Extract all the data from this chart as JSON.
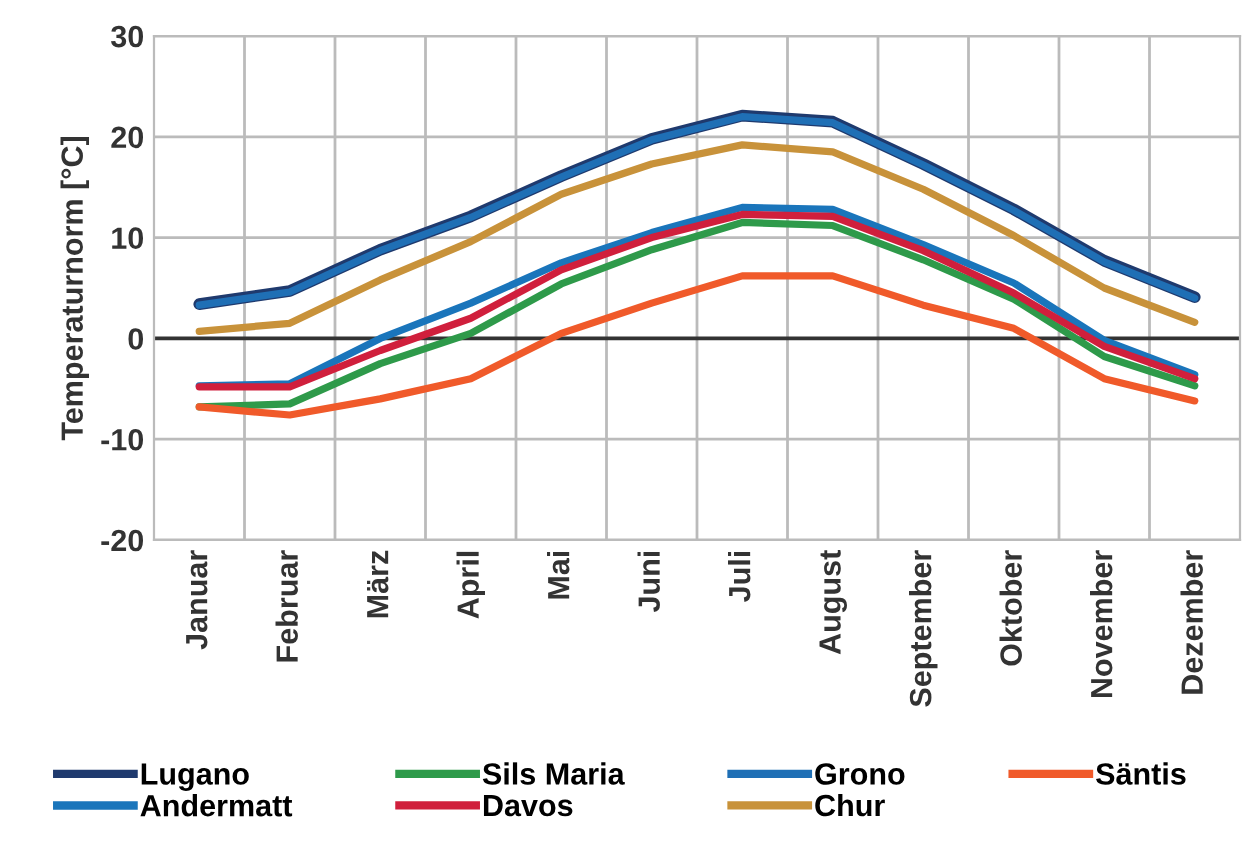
{
  "chart_data": {
    "type": "line",
    "ylabel": "Temperaturnorm [°C]",
    "categories": [
      "Januar",
      "Februar",
      "März",
      "April",
      "Mai",
      "Juni",
      "Juli",
      "August",
      "September",
      "Oktober",
      "November",
      "Dezember"
    ],
    "series": [
      {
        "name": "Lugano",
        "color": "#1f3a6e",
        "values": [
          3.4,
          4.7,
          8.8,
          12.1,
          16.1,
          19.8,
          22.1,
          21.5,
          17.3,
          12.8,
          7.7,
          4.1
        ]
      },
      {
        "name": "Andermatt",
        "color": "#1a75bb",
        "values": [
          -4.7,
          -4.5,
          0,
          3.5,
          7.5,
          10.5,
          13,
          12.8,
          9.3,
          5.5,
          -0.2,
          -3.6
        ]
      },
      {
        "name": "Sils Maria",
        "color": "#2e9a4a",
        "values": [
          -6.8,
          -6.5,
          -2.5,
          0.5,
          5.4,
          8.8,
          11.5,
          11.2,
          7.8,
          3.9,
          -1.8,
          -4.7
        ]
      },
      {
        "name": "Davos",
        "color": "#d01f3c",
        "values": [
          -4.8,
          -4.8,
          -1.2,
          2,
          6.8,
          10,
          12.3,
          12.1,
          8.7,
          4.5,
          -0.8,
          -4
        ]
      },
      {
        "name": "Grono",
        "color": "#1f6fb5",
        "values": [
          3.3,
          4.6,
          8.7,
          12,
          16,
          19.7,
          22,
          21.4,
          17.2,
          12.7,
          7.6,
          4
        ]
      },
      {
        "name": "Chur",
        "color": "#c8923a",
        "values": [
          0.7,
          1.5,
          5.8,
          9.6,
          14.3,
          17.3,
          19.2,
          18.5,
          14.8,
          10.2,
          5,
          1.6
        ]
      },
      {
        "name": "Säntis",
        "color": "#f05a2a",
        "values": [
          -6.8,
          -7.6,
          -6,
          -4,
          0.5,
          3.5,
          6.2,
          6.2,
          3.3,
          1,
          -4,
          -6.2
        ]
      }
    ],
    "ylim": [
      -20,
      30
    ],
    "yticks": [
      -20,
      -10,
      0,
      10,
      20,
      30
    ],
    "grid": true,
    "legend": "bottom",
    "marker": "none",
    "line_style": "solid",
    "ref_lines": [
      {
        "axis": "y",
        "value": 0,
        "color": "#333333"
      }
    ]
  }
}
